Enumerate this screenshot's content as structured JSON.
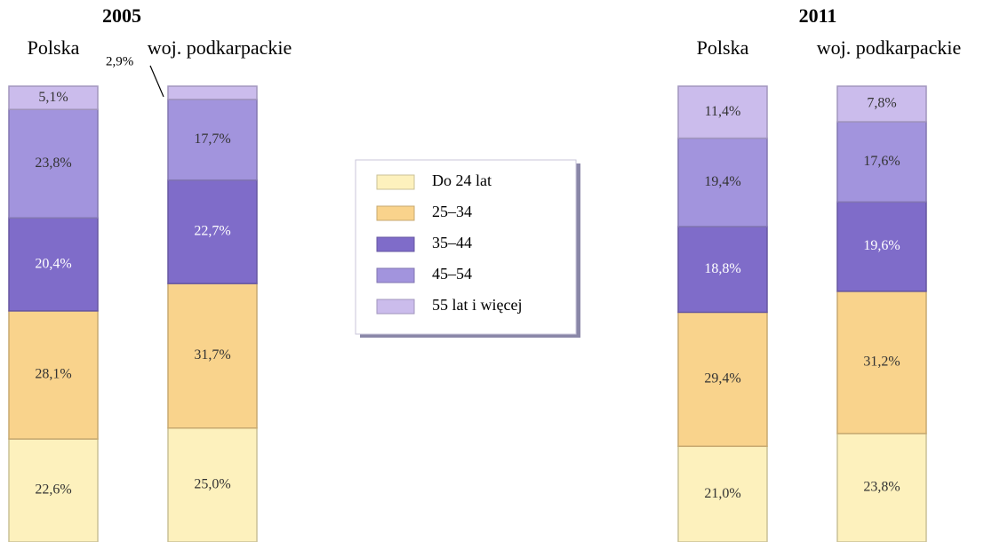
{
  "chart_data": {
    "type": "stacked_bar",
    "panels": [
      "2005",
      "2011"
    ],
    "categories": [
      "Polska",
      "woj. podkarpackie",
      "Polska",
      "woj. podkarpackie"
    ],
    "ylim": [
      0,
      100
    ],
    "series": [
      {
        "name": "Do 24 lat",
        "color": "#fdf1bd",
        "label_color": "#333333",
        "values": [
          22.6,
          25.0,
          21.0,
          23.8
        ],
        "value_labels": [
          "22,6%",
          "25,0%",
          "21,0%",
          "23,8%"
        ]
      },
      {
        "name": "25–34",
        "color": "#f9d38c",
        "label_color": "#333333",
        "values": [
          28.1,
          31.7,
          29.4,
          31.2
        ],
        "value_labels": [
          "28,1%",
          "31,7%",
          "29,4%",
          "31,2%"
        ]
      },
      {
        "name": "35–44",
        "color": "#7f6cc9",
        "label_color": "#ffffff",
        "values": [
          20.4,
          22.7,
          18.8,
          19.6
        ],
        "value_labels": [
          "20,4%",
          "22,7%",
          "18,8%",
          "19,6%"
        ]
      },
      {
        "name": "45–54",
        "color": "#a294dd",
        "label_color": "#333333",
        "values": [
          23.8,
          17.7,
          19.4,
          17.6
        ],
        "value_labels": [
          "23,8%",
          "17,7%",
          "19,4%",
          "17,6%"
        ]
      },
      {
        "name": "55 lat i więcej",
        "color": "#cbbcec",
        "label_color": "#333333",
        "values": [
          5.1,
          2.9,
          11.4,
          7.8
        ],
        "value_labels": [
          "5,1%",
          "2,9%",
          "11,4%",
          "7,8%"
        ]
      }
    ]
  }
}
